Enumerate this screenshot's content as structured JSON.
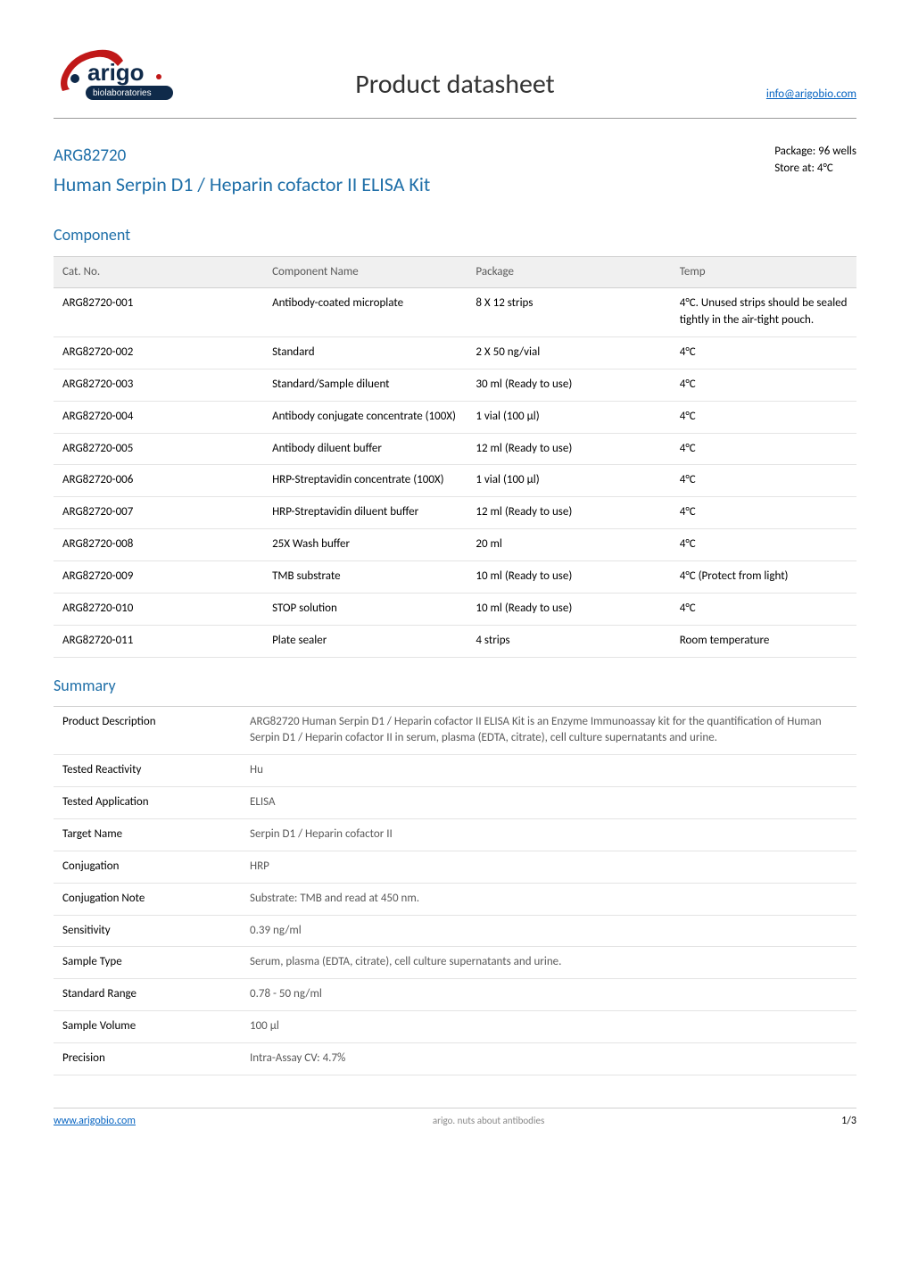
{
  "header": {
    "logo_brand_top": "arigo",
    "logo_brand_bottom": "biolaboratories",
    "logo_colors": {
      "red": "#c01818",
      "navy": "#0f2a4a",
      "white": "#ffffff"
    },
    "title": "Product datasheet",
    "email": "info@arigobio.com"
  },
  "product": {
    "code": "ARG82720",
    "name": "Human Serpin D1 / Heparin cofactor II ELISA Kit",
    "package": "Package: 96 wells",
    "storage": "Store at: 4°C"
  },
  "component": {
    "title": "Component",
    "columns": [
      "Cat. No.",
      "Component Name",
      "Package",
      "Temp"
    ],
    "rows": [
      [
        "ARG82720-001",
        "Antibody-coated microplate",
        "8 X 12 strips",
        "4°C. Unused strips should be sealed tightly in the air-tight pouch."
      ],
      [
        "ARG82720-002",
        "Standard",
        "2 X 50 ng/vial",
        "4°C"
      ],
      [
        "ARG82720-003",
        "Standard/Sample diluent",
        "30 ml (Ready to use)",
        "4°C"
      ],
      [
        "ARG82720-004",
        "Antibody conjugate concentrate (100X)",
        "1 vial (100 µl)",
        "4°C"
      ],
      [
        "ARG82720-005",
        "Antibody diluent buffer",
        "12 ml (Ready to use)",
        "4°C"
      ],
      [
        "ARG82720-006",
        "HRP-Streptavidin concentrate (100X)",
        "1 vial (100 µl)",
        "4°C"
      ],
      [
        "ARG82720-007",
        "HRP-Streptavidin diluent buffer",
        "12 ml (Ready to use)",
        "4°C"
      ],
      [
        "ARG82720-008",
        "25X Wash buffer",
        "20 ml",
        "4°C"
      ],
      [
        "ARG82720-009",
        "TMB substrate",
        "10 ml (Ready to use)",
        "4°C (Protect from light)"
      ],
      [
        "ARG82720-010",
        "STOP solution",
        "10 ml (Ready to use)",
        "4°C"
      ],
      [
        "ARG82720-011",
        "Plate sealer",
        "4 strips",
        "Room temperature"
      ]
    ]
  },
  "summary": {
    "title": "Summary",
    "rows": [
      {
        "label": "Product Description",
        "value": "ARG82720 Human Serpin D1 / Heparin cofactor II ELISA Kit is an Enzyme Immunoassay kit for the quantification of Human Serpin D1 / Heparin cofactor II in serum, plasma (EDTA, citrate), cell culture supernatants and urine."
      },
      {
        "label": "Tested Reactivity",
        "value": "Hu"
      },
      {
        "label": "Tested Application",
        "value": "ELISA"
      },
      {
        "label": "Target Name",
        "value": "Serpin D1 / Heparin cofactor II"
      },
      {
        "label": "Conjugation",
        "value": "HRP"
      },
      {
        "label": "Conjugation Note",
        "value": "Substrate: TMB and read at 450 nm."
      },
      {
        "label": "Sensitivity",
        "value": "0.39 ng/ml"
      },
      {
        "label": "Sample Type",
        "value": "Serum, plasma (EDTA, citrate), cell culture supernatants and urine."
      },
      {
        "label": "Standard Range",
        "value": "0.78 - 50 ng/ml"
      },
      {
        "label": "Sample Volume",
        "value": "100 µl"
      },
      {
        "label": "Precision",
        "value": "Intra-Assay CV: 4.7%"
      }
    ]
  },
  "footer": {
    "url": "www.arigobio.com",
    "slogan": "arigo. nuts about antibodies",
    "page": "1/3"
  },
  "style": {
    "accent_color": "#1f6fa8",
    "link_color": "#0563c1",
    "header_gray": "#595959",
    "row_border": "#e4e4e4",
    "header_bg": "#f0f0f0"
  }
}
